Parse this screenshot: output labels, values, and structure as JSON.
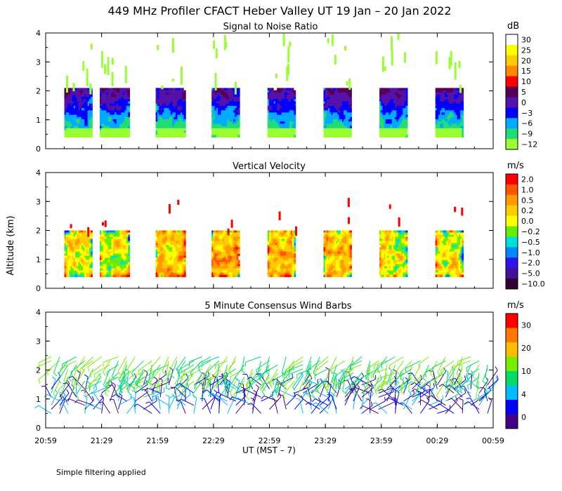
{
  "title": "449 MHz Profiler CFACT Heber Valley UT 19 Jan – 20 Jan 2022",
  "ylabel": "Altitude (km)",
  "xlabel": "UT  (MST – 7)",
  "footnote": "Simple filtering applied",
  "chart_data": [
    {
      "type": "heatmap",
      "title": "Signal to Noise Ratio",
      "units": "dB",
      "ylim": [
        0,
        4
      ],
      "yticks": [
        "0",
        "1",
        "2",
        "3",
        "4"
      ],
      "xticks": [
        "20:59",
        "21:29",
        "21:59",
        "22:29",
        "22:59",
        "23:29",
        "23:59",
        "00:29",
        "00:59"
      ],
      "colorbar_labels": [
        "30",
        "25",
        "20",
        "15",
        "10",
        "5",
        "0",
        "−3",
        "−6",
        "−9",
        "−12"
      ],
      "colors": [
        "#ffffff",
        "#ffff00",
        "#ffcc00",
        "#ff8800",
        "#ff0000",
        "#550055",
        "#5511aa",
        "#0000ff",
        "#00aaff",
        "#22dd77",
        "#99ff33"
      ],
      "blocks": [
        {
          "start": "21:09",
          "end": "21:24"
        },
        {
          "start": "21:28",
          "end": "21:44"
        },
        {
          "start": "21:58",
          "end": "22:14"
        },
        {
          "start": "22:28",
          "end": "22:43"
        },
        {
          "start": "22:58",
          "end": "23:13"
        },
        {
          "start": "23:28",
          "end": "23:43"
        },
        {
          "start": "23:58",
          "end": "00:13"
        },
        {
          "start": "00:28",
          "end": "00:43"
        }
      ],
      "data_altitude_km": [
        0.4,
        2.1
      ]
    },
    {
      "type": "heatmap",
      "title": "Vertical Velocity",
      "units": "m/s",
      "ylim": [
        0,
        4
      ],
      "yticks": [
        "0",
        "1",
        "2",
        "3",
        "4"
      ],
      "xticks": [
        "20:59",
        "21:29",
        "21:59",
        "22:29",
        "22:59",
        "23:29",
        "23:59",
        "00:29",
        "00:59"
      ],
      "colorbar_labels": [
        "2.0",
        "1.0",
        "0.5",
        "0.2",
        "0.0",
        "−0.2",
        "−0.5",
        "−1.0",
        "−2.0",
        "−5.0",
        "−10.0"
      ],
      "colors": [
        "#ff0000",
        "#ff5500",
        "#ff9900",
        "#ffcc00",
        "#ffff00",
        "#66ee00",
        "#00dddd",
        "#0088ff",
        "#3311ee",
        "#441199",
        "#330033"
      ],
      "data_altitude_km": [
        0.4,
        2.0
      ]
    },
    {
      "type": "wind_barbs",
      "title": "5 Minute Consensus Wind Barbs",
      "units": "m/s",
      "ylim": [
        0,
        4
      ],
      "yticks": [
        "0",
        "1",
        "2",
        "3",
        "4"
      ],
      "xticks": [
        "20:59",
        "21:29",
        "21:59",
        "22:29",
        "22:59",
        "23:29",
        "23:59",
        "00:29",
        "00:59"
      ],
      "colorbar_labels": [
        "30",
        "20",
        "10",
        "4",
        "0"
      ],
      "colors": [
        "#ff0000",
        "#ff7700",
        "#ffbb00",
        "#77ee00",
        "#00dd66",
        "#00bbff",
        "#0000ff",
        "#440088"
      ],
      "data_altitude_km": [
        0.4,
        2.6
      ]
    }
  ]
}
